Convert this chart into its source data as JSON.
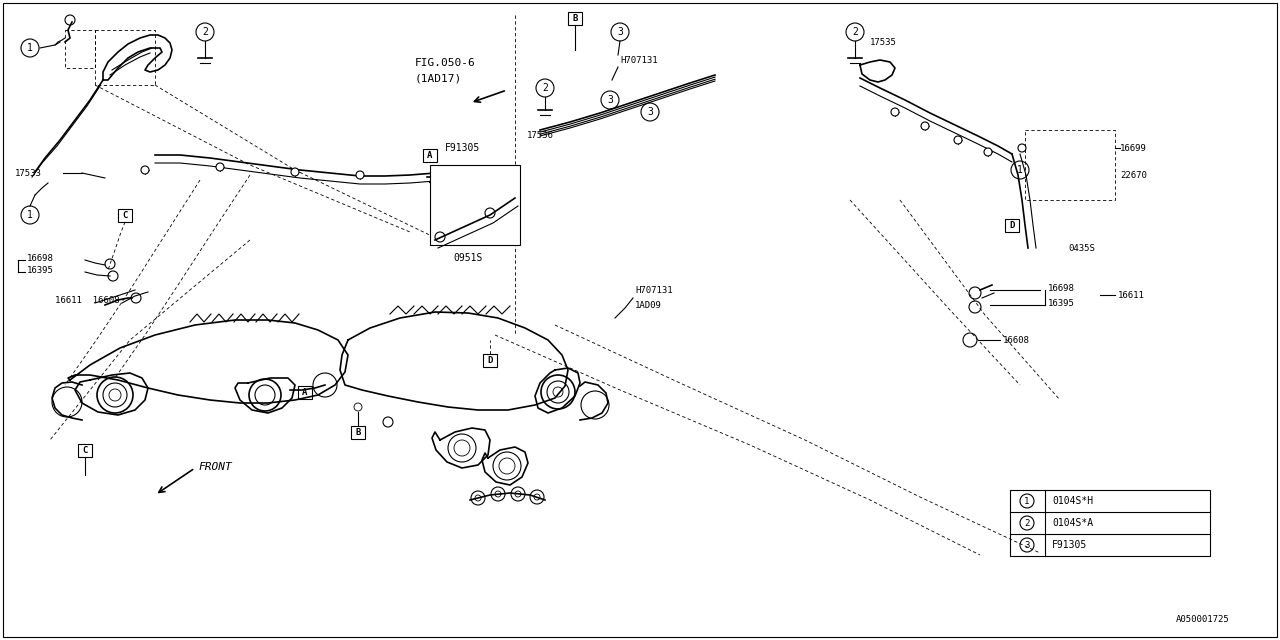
{
  "bg_color": "#ffffff",
  "line_color": "#000000",
  "fig_width": 12.8,
  "fig_height": 6.4,
  "diagram_id": "A050001725",
  "legend_items": [
    {
      "num": "1",
      "code": "0104S*H"
    },
    {
      "num": "2",
      "code": "0104S*A"
    },
    {
      "num": "3",
      "code": "F91305"
    }
  ],
  "fig_ref_text1": "FIG.050-6",
  "fig_ref_text2": "(1AD17)",
  "front_label": "FRONT",
  "part_0951S": "0951S",
  "part_F91305": "F91305",
  "part_0435S": "0435S",
  "label_17533": "17533",
  "label_17535": "17535",
  "label_17536": "17536",
  "label_16698": "16698",
  "label_16395": "16395",
  "label_16611": "16611",
  "label_16608": "16608",
  "label_H707131": "H707131",
  "label_1AD09": "1AD09",
  "label_22670": "22670",
  "label_16699": "16699"
}
